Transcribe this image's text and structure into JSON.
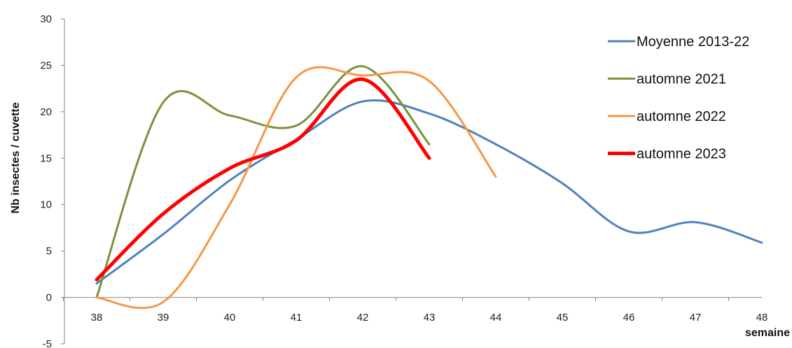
{
  "chart_data": {
    "type": "line",
    "title": "",
    "xlabel": "semaine",
    "ylabel": "Nb insectes / cuvette",
    "xlim": [
      38,
      48
    ],
    "ylim": [
      -5,
      30
    ],
    "x_ticks": [
      38,
      39,
      40,
      41,
      42,
      43,
      44,
      45,
      46,
      47,
      48
    ],
    "y_ticks": [
      -5,
      0,
      5,
      10,
      15,
      20,
      25,
      30
    ],
    "grid": false,
    "legend_position": "top-right",
    "series": [
      {
        "name": "Moyenne 2013-22",
        "color": "#4f81bd",
        "width": 3,
        "x": [
          38,
          39,
          40,
          41,
          42,
          43,
          44,
          45,
          46,
          47,
          48
        ],
        "y": [
          1.5,
          6.8,
          12.6,
          17.0,
          21.1,
          19.8,
          16.5,
          12.3,
          7.1,
          8.1,
          5.9
        ]
      },
      {
        "name": "automne 2021",
        "color": "#77933c",
        "width": 3,
        "x": [
          38,
          39,
          40,
          41,
          42,
          43
        ],
        "y": [
          0.0,
          21.0,
          19.6,
          18.5,
          24.9,
          16.5
        ]
      },
      {
        "name": "automne 2022",
        "color": "#f79646",
        "width": 3,
        "x": [
          38,
          39,
          40,
          41,
          42,
          43,
          44
        ],
        "y": [
          0.0,
          -0.5,
          10.0,
          23.7,
          23.9,
          23.3,
          13.0
        ]
      },
      {
        "name": "automne 2023",
        "color": "#ff0000",
        "width": 5,
        "x": [
          38,
          39,
          40,
          41,
          42,
          43
        ],
        "y": [
          1.9,
          9.0,
          13.9,
          16.9,
          23.5,
          15.0
        ]
      }
    ]
  }
}
